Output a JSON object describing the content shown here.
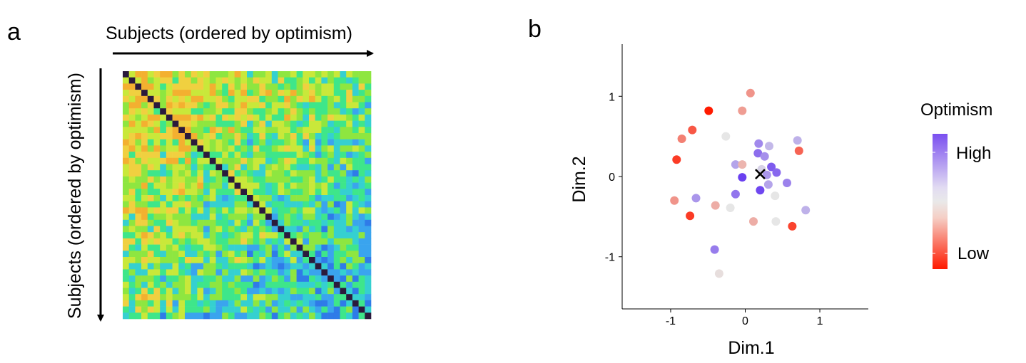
{
  "panels": {
    "a": {
      "label": "a",
      "x_arrow_label": "Subjects (ordered by optimism)",
      "y_arrow_label": "Subjects (ordered by optimism)"
    },
    "b": {
      "label": "b",
      "xlabel": "Dim.1",
      "ylabel": "Dim.2",
      "legend_title": "Optimism",
      "legend_high": "High",
      "legend_low": "Low"
    }
  },
  "colors": {
    "diagonal": "#2b1a3c",
    "low": "#ff1a00",
    "mid": "#e6e6e6",
    "high": "#6a40f0",
    "heat_scale": [
      "#2f7be8",
      "#3aa4ee",
      "#35d0d0",
      "#3ee68a",
      "#8ee640",
      "#c9e83a",
      "#f0d040",
      "#f3b030"
    ]
  },
  "chart_data": [
    {
      "type": "heatmap",
      "title": "",
      "xlabel": "Subjects (ordered by optimism)",
      "ylabel": "Subjects (ordered by optimism)",
      "n_subjects": 40,
      "diagonal": "self (darkest)",
      "pattern": "similarity high (yellow/green) among low-optimism subjects at top-left, low (blue) among high-optimism subjects at bottom-right"
    },
    {
      "type": "scatter",
      "title": "",
      "xlabel": "Dim.1",
      "ylabel": "Dim.2",
      "xlim": [
        -1.65,
        1.65
      ],
      "ylim": [
        -1.65,
        1.65
      ],
      "xticks": [
        -1,
        0,
        1
      ],
      "yticks": [
        -1,
        0,
        1
      ],
      "tick_labels_x": [
        "-1",
        "0",
        "1"
      ],
      "tick_labels_y": [
        "-1",
        "0",
        "1"
      ],
      "grid": false,
      "legend": "right",
      "color_scale": "optimism: red (Low) to white to purple (High)",
      "points": [
        {
          "x": 0.07,
          "y": 1.04,
          "optimism": 0.3
        },
        {
          "x": -0.49,
          "y": 0.82,
          "optimism": 0.0
        },
        {
          "x": -0.04,
          "y": 0.82,
          "optimism": 0.32
        },
        {
          "x": -0.71,
          "y": 0.58,
          "optimism": 0.15
        },
        {
          "x": -0.85,
          "y": 0.47,
          "optimism": 0.25
        },
        {
          "x": -0.26,
          "y": 0.5,
          "optimism": 0.5
        },
        {
          "x": 0.18,
          "y": 0.41,
          "optimism": 0.78
        },
        {
          "x": 0.32,
          "y": 0.38,
          "optimism": 0.64
        },
        {
          "x": 0.7,
          "y": 0.45,
          "optimism": 0.66
        },
        {
          "x": 0.72,
          "y": 0.32,
          "optimism": 0.18
        },
        {
          "x": 0.17,
          "y": 0.29,
          "optimism": 0.86
        },
        {
          "x": 0.26,
          "y": 0.25,
          "optimism": 0.76
        },
        {
          "x": -0.92,
          "y": 0.21,
          "optimism": 0.08
        },
        {
          "x": -0.13,
          "y": 0.15,
          "optimism": 0.7
        },
        {
          "x": -0.04,
          "y": 0.15,
          "optimism": 0.38
        },
        {
          "x": 0.35,
          "y": 0.12,
          "optimism": 0.92
        },
        {
          "x": 0.22,
          "y": 0.09,
          "optimism": 0.56
        },
        {
          "x": 0.42,
          "y": 0.05,
          "optimism": 0.88
        },
        {
          "x": 0.29,
          "y": 0.02,
          "optimism": 0.74
        },
        {
          "x": -0.04,
          "y": -0.01,
          "optimism": 1.0
        },
        {
          "x": 0.56,
          "y": -0.08,
          "optimism": 0.8
        },
        {
          "x": 0.31,
          "y": -0.1,
          "optimism": 0.7
        },
        {
          "x": 0.2,
          "y": -0.17,
          "optimism": 0.98
        },
        {
          "x": -0.13,
          "y": -0.22,
          "optimism": 0.84
        },
        {
          "x": 0.4,
          "y": -0.24,
          "optimism": 0.5
        },
        {
          "x": -0.66,
          "y": -0.27,
          "optimism": 0.74
        },
        {
          "x": -0.95,
          "y": -0.3,
          "optimism": 0.3
        },
        {
          "x": -0.4,
          "y": -0.36,
          "optimism": 0.36
        },
        {
          "x": -0.2,
          "y": -0.39,
          "optimism": 0.5
        },
        {
          "x": 0.81,
          "y": -0.42,
          "optimism": 0.66
        },
        {
          "x": -0.74,
          "y": -0.49,
          "optimism": 0.08
        },
        {
          "x": 0.11,
          "y": -0.56,
          "optimism": 0.36
        },
        {
          "x": 0.41,
          "y": -0.56,
          "optimism": 0.5
        },
        {
          "x": 0.63,
          "y": -0.62,
          "optimism": 0.1
        },
        {
          "x": -0.41,
          "y": -0.91,
          "optimism": 0.82
        },
        {
          "x": -0.35,
          "y": -1.21,
          "optimism": 0.48
        }
      ],
      "marker": {
        "x": 0.2,
        "y": 0.03,
        "symbol": "x"
      }
    }
  ]
}
